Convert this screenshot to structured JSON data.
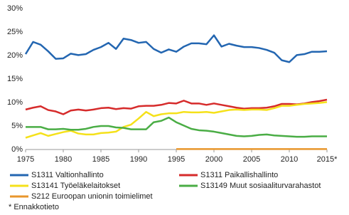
{
  "chart_data": {
    "type": "line",
    "x": [
      1975,
      1976,
      1977,
      1978,
      1979,
      1980,
      1981,
      1982,
      1983,
      1984,
      1985,
      1986,
      1987,
      1988,
      1989,
      1990,
      1991,
      1992,
      1993,
      1994,
      1995,
      1996,
      1997,
      1998,
      1999,
      2000,
      2001,
      2002,
      2003,
      2004,
      2005,
      2006,
      2007,
      2008,
      2009,
      2010,
      2011,
      2012,
      2013,
      2014,
      2015
    ],
    "series": [
      {
        "name": "S1311 Valtionhallinto",
        "color": "#2366b1",
        "values": [
          20.3,
          22.9,
          22.3,
          20.9,
          19.3,
          19.4,
          20.4,
          20.1,
          20.3,
          21.2,
          21.8,
          22.7,
          21.4,
          23.6,
          23.3,
          22.7,
          22.9,
          21.4,
          20.6,
          21.3,
          20.8,
          21.9,
          22.6,
          22.6,
          22.4,
          24.3,
          21.9,
          22.5,
          22.1,
          21.8,
          21.8,
          21.6,
          21.2,
          20.6,
          19.0,
          18.6,
          20.1,
          20.3,
          20.8,
          20.8,
          20.9
        ]
      },
      {
        "name": "S1311 Paikallishallinto",
        "color": "#d62b2b",
        "values": [
          8.5,
          8.9,
          9.2,
          8.4,
          8.1,
          7.5,
          8.3,
          8.5,
          8.3,
          8.5,
          8.8,
          8.9,
          8.6,
          8.8,
          8.7,
          9.2,
          9.3,
          9.3,
          9.5,
          9.9,
          9.8,
          10.4,
          9.8,
          9.8,
          9.5,
          9.8,
          9.5,
          9.2,
          8.9,
          8.7,
          8.8,
          8.8,
          8.9,
          9.2,
          9.7,
          9.7,
          9.6,
          9.8,
          10.1,
          10.3,
          10.6
        ]
      },
      {
        "name": "S13141 Työeläkelaitokset",
        "color": "#f5e11a",
        "values": [
          2.5,
          3.0,
          3.5,
          2.9,
          3.3,
          3.7,
          4.0,
          3.4,
          3.2,
          3.2,
          3.5,
          3.6,
          3.8,
          4.8,
          5.3,
          6.6,
          8.0,
          7.1,
          7.5,
          7.7,
          7.7,
          8.0,
          7.9,
          7.9,
          8.0,
          7.8,
          8.1,
          8.4,
          8.5,
          8.4,
          8.5,
          8.5,
          8.4,
          8.8,
          9.3,
          9.3,
          9.5,
          9.7,
          9.8,
          9.9,
          10.1
        ]
      },
      {
        "name": "S13149 Muut sosiaaliturvarahastot",
        "color": "#4aad45",
        "values": [
          4.8,
          4.8,
          4.8,
          4.3,
          4.3,
          4.4,
          4.2,
          4.2,
          4.4,
          4.8,
          5.0,
          5.0,
          4.7,
          4.6,
          4.3,
          4.3,
          4.3,
          5.8,
          6.1,
          6.8,
          5.8,
          5.1,
          4.4,
          4.1,
          4.0,
          3.8,
          3.5,
          3.2,
          2.9,
          2.8,
          2.9,
          3.1,
          3.2,
          3.0,
          2.9,
          2.8,
          2.7,
          2.7,
          2.8,
          2.8,
          2.8
        ]
      },
      {
        "name": "S212 Euroopan unionin toimielimet",
        "color": "#e8962c",
        "values": [
          null,
          null,
          null,
          null,
          null,
          null,
          null,
          null,
          null,
          null,
          null,
          null,
          null,
          null,
          null,
          null,
          null,
          null,
          null,
          null,
          0.1,
          0.1,
          0.1,
          0.1,
          0.1,
          0.1,
          0.1,
          0.1,
          0.1,
          0.1,
          0.1,
          0.1,
          0.1,
          0.1,
          0.1,
          0.1,
          0.1,
          0.1,
          0.1,
          0.1,
          0.1
        ]
      }
    ],
    "xlim": [
      1975,
      2015
    ],
    "xticks": [
      1975,
      1980,
      1985,
      1990,
      1995,
      2000,
      2005,
      2010,
      {
        "value": 2015,
        "label": "2015*"
      }
    ],
    "ylim": [
      0,
      30
    ],
    "yticks": [
      {
        "value": 0,
        "label": "0%"
      },
      {
        "value": 5,
        "label": "5%"
      },
      {
        "value": 10,
        "label": "10%"
      },
      {
        "value": 15,
        "label": "15%"
      },
      {
        "value": 20,
        "label": "20%"
      },
      {
        "value": 25,
        "label": "25%"
      },
      {
        "value": 30,
        "label": "30%"
      }
    ],
    "grid": false,
    "footnote": "* Ennakkotieto"
  }
}
